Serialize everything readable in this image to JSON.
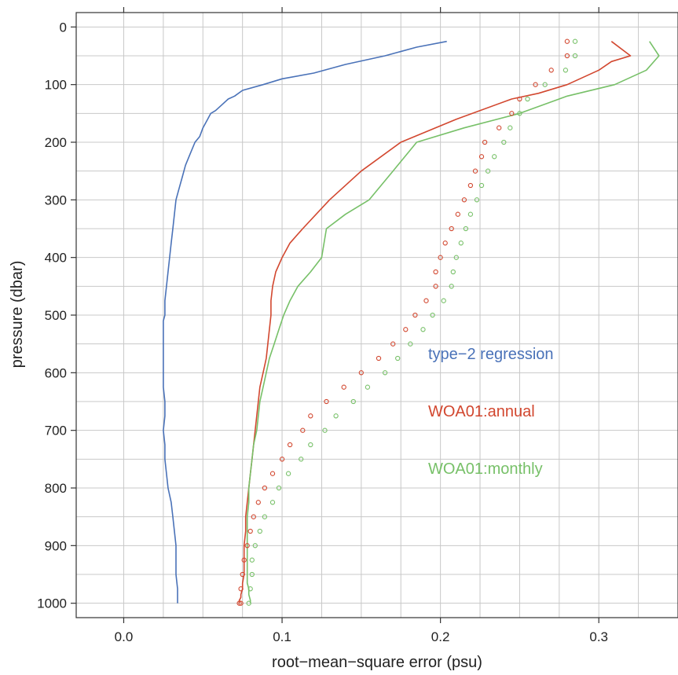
{
  "chart_data": {
    "type": "line",
    "xlabel": "root−mean−square error (psu)",
    "ylabel": "pressure (dbar)",
    "xlim": [
      -0.03,
      0.35
    ],
    "ylim": [
      1025,
      -25
    ],
    "y_inverted": true,
    "grid": true,
    "xticks": [
      0.0,
      0.1,
      0.2,
      0.3
    ],
    "xtick_labels": [
      "0.0",
      "0.1",
      "0.2",
      "0.3"
    ],
    "yticks": [
      0,
      100,
      200,
      300,
      400,
      500,
      600,
      700,
      800,
      900,
      1000
    ],
    "ytick_labels": [
      "0",
      "100",
      "200",
      "300",
      "400",
      "500",
      "600",
      "700",
      "800",
      "900",
      "1000"
    ],
    "legend_placement": "right, inside plot",
    "series": [
      {
        "name": "type−2 regression",
        "style": "line",
        "color": "#4a72b8",
        "x": [
          0.204,
          0.185,
          0.165,
          0.14,
          0.12,
          0.1,
          0.088,
          0.075,
          0.07,
          0.066,
          0.062,
          0.058,
          0.055,
          0.053,
          0.05,
          0.048,
          0.045,
          0.042,
          0.039,
          0.037,
          0.035,
          0.033,
          0.032,
          0.031,
          0.03,
          0.029,
          0.028,
          0.027,
          0.026,
          0.026,
          0.025,
          0.025,
          0.025,
          0.025,
          0.025,
          0.025,
          0.026,
          0.026,
          0.025,
          0.026,
          0.026,
          0.027,
          0.028,
          0.03,
          0.031,
          0.032,
          0.033,
          0.033,
          0.033,
          0.034,
          0.034,
          0.034,
          0.034,
          0.034,
          0.034,
          0.034
        ],
        "y": [
          25,
          35,
          50,
          65,
          80,
          90,
          100,
          110,
          120,
          125,
          135,
          145,
          150,
          160,
          175,
          190,
          200,
          220,
          240,
          260,
          280,
          300,
          325,
          350,
          375,
          400,
          425,
          450,
          475,
          500,
          510,
          525,
          550,
          575,
          600,
          625,
          650,
          675,
          700,
          725,
          750,
          775,
          800,
          825,
          850,
          875,
          900,
          925,
          950,
          975,
          1000,
          1000,
          1000,
          1000,
          1000,
          1000
        ]
      },
      {
        "name": "WOA01:annual",
        "style": "line",
        "color": "#d2472f",
        "x": [
          0.308,
          0.32,
          0.308,
          0.3,
          0.28,
          0.262,
          0.245,
          0.21,
          0.175,
          0.15,
          0.13,
          0.113,
          0.105,
          0.1,
          0.096,
          0.094,
          0.093,
          0.093,
          0.092,
          0.091,
          0.09,
          0.088,
          0.086,
          0.085,
          0.084,
          0.083,
          0.082,
          0.081,
          0.08,
          0.079,
          0.078,
          0.077,
          0.077,
          0.076,
          0.076,
          0.076,
          0.075,
          0.075,
          0.074,
          0.074,
          0.073,
          0.073
        ],
        "y": [
          25,
          50,
          60,
          75,
          100,
          115,
          125,
          160,
          200,
          250,
          300,
          350,
          375,
          400,
          425,
          450,
          475,
          500,
          525,
          550,
          575,
          600,
          625,
          650,
          675,
          700,
          725,
          750,
          775,
          800,
          825,
          850,
          875,
          900,
          925,
          950,
          965,
          975,
          985,
          990,
          995,
          1000
        ]
      },
      {
        "name": "WOA01:monthly",
        "style": "line",
        "color": "#77c068",
        "x": [
          0.332,
          0.338,
          0.33,
          0.31,
          0.28,
          0.25,
          0.215,
          0.185,
          0.17,
          0.155,
          0.14,
          0.128,
          0.125,
          0.118,
          0.11,
          0.105,
          0.101,
          0.098,
          0.095,
          0.092,
          0.09,
          0.088,
          0.086,
          0.085,
          0.084,
          0.082,
          0.081,
          0.08,
          0.079,
          0.079,
          0.078,
          0.078,
          0.078,
          0.078,
          0.078,
          0.078,
          0.079,
          0.079,
          0.08,
          0.08
        ],
        "y": [
          25,
          50,
          75,
          100,
          120,
          150,
          175,
          200,
          250,
          300,
          325,
          350,
          400,
          425,
          450,
          475,
          500,
          525,
          550,
          575,
          600,
          625,
          650,
          675,
          700,
          725,
          750,
          775,
          800,
          825,
          850,
          875,
          900,
          925,
          950,
          965,
          975,
          985,
          995,
          1000
        ]
      },
      {
        "name": "WOA01:annual",
        "style": "points",
        "color": "#d2472f",
        "x": [
          0.28,
          0.28,
          0.27,
          0.26,
          0.25,
          0.245,
          0.237,
          0.228,
          0.226,
          0.222,
          0.219,
          0.215,
          0.211,
          0.207,
          0.203,
          0.2,
          0.197,
          0.197,
          0.191,
          0.184,
          0.178,
          0.17,
          0.161,
          0.15,
          0.139,
          0.128,
          0.118,
          0.113,
          0.105,
          0.1,
          0.094,
          0.089,
          0.085,
          0.082,
          0.08,
          0.078,
          0.076,
          0.075,
          0.074,
          0.073,
          0.074,
          0.073
        ],
        "y": [
          25,
          50,
          75,
          100,
          125,
          150,
          175,
          200,
          225,
          250,
          275,
          300,
          325,
          350,
          375,
          400,
          425,
          450,
          475,
          500,
          525,
          550,
          575,
          600,
          625,
          650,
          675,
          700,
          725,
          750,
          775,
          800,
          825,
          850,
          875,
          900,
          925,
          950,
          975,
          1000,
          1000,
          1000
        ]
      },
      {
        "name": "WOA01:monthly",
        "style": "points",
        "color": "#77c068",
        "x": [
          0.285,
          0.285,
          0.279,
          0.266,
          0.255,
          0.25,
          0.244,
          0.24,
          0.234,
          0.23,
          0.226,
          0.223,
          0.219,
          0.216,
          0.213,
          0.21,
          0.208,
          0.207,
          0.202,
          0.195,
          0.189,
          0.181,
          0.173,
          0.165,
          0.154,
          0.145,
          0.134,
          0.127,
          0.118,
          0.112,
          0.104,
          0.098,
          0.094,
          0.089,
          0.086,
          0.083,
          0.081,
          0.081,
          0.08,
          0.079,
          0.079,
          0.079
        ],
        "y": [
          25,
          50,
          75,
          100,
          125,
          150,
          175,
          200,
          225,
          250,
          275,
          300,
          325,
          350,
          375,
          400,
          425,
          450,
          475,
          500,
          525,
          550,
          575,
          600,
          625,
          650,
          675,
          700,
          725,
          750,
          775,
          800,
          825,
          850,
          875,
          900,
          925,
          950,
          975,
          1000,
          1000,
          1000
        ]
      }
    ],
    "annotations": [
      {
        "text": "type−2 regression",
        "color": "#4a72b8"
      },
      {
        "text": "WOA01:annual",
        "color": "#d2472f"
      },
      {
        "text": "WOA01:monthly",
        "color": "#77c068"
      }
    ],
    "grid_color": "#c8c8c8",
    "frame_color": "#333333"
  }
}
